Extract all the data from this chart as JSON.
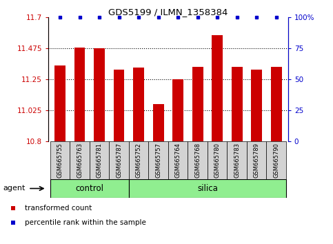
{
  "title": "GDS5199 / ILMN_1358384",
  "samples": [
    "GSM665755",
    "GSM665763",
    "GSM665781",
    "GSM665787",
    "GSM665752",
    "GSM665757",
    "GSM665764",
    "GSM665768",
    "GSM665780",
    "GSM665783",
    "GSM665789",
    "GSM665790"
  ],
  "bar_values": [
    11.35,
    11.48,
    11.475,
    11.32,
    11.335,
    11.07,
    11.25,
    11.34,
    11.57,
    11.34,
    11.32,
    11.34
  ],
  "ymin": 10.8,
  "ymax": 11.7,
  "yticks": [
    10.8,
    11.025,
    11.25,
    11.475,
    11.7
  ],
  "ytick_labels": [
    "10.8",
    "11.025",
    "11.25",
    "11.475",
    "11.7"
  ],
  "right_yticks": [
    0,
    25,
    50,
    75,
    100
  ],
  "right_ytick_labels": [
    "0",
    "25",
    "50",
    "75",
    "100%"
  ],
  "bar_color": "#cc0000",
  "dot_color": "#0000cc",
  "control_samples": 4,
  "silica_samples": 8,
  "control_label": "control",
  "silica_label": "silica",
  "agent_label": "agent",
  "legend_bar_label": "transformed count",
  "legend_dot_label": "percentile rank within the sample",
  "label_bg": "#d3d3d3",
  "group_color": "#90EE90"
}
